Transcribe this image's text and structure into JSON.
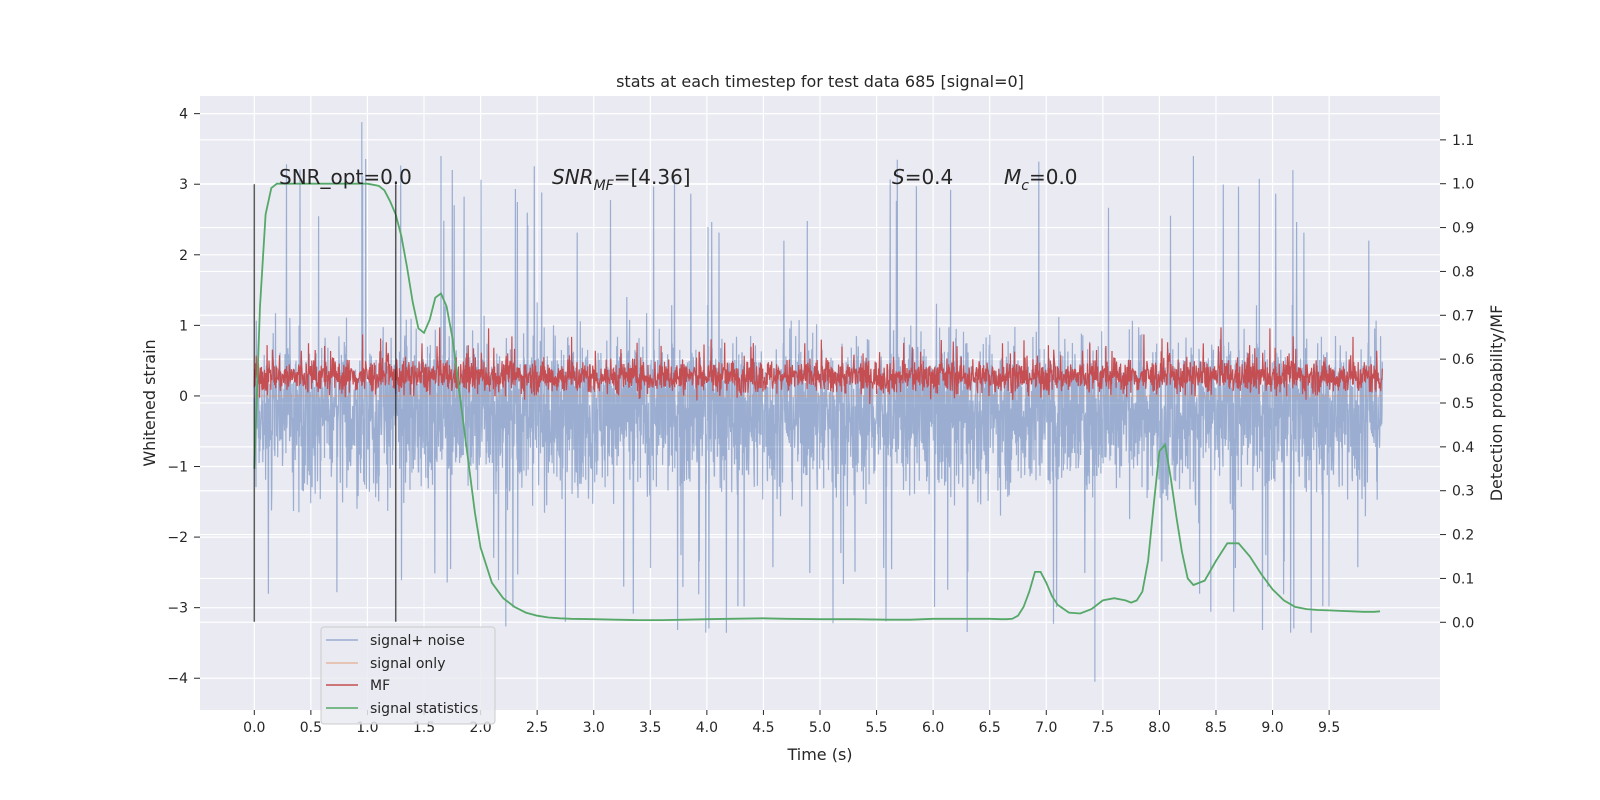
{
  "chart_data": {
    "type": "line",
    "title": "stats at each timestep for test data 685 [signal=0]",
    "xlabel": "Time (s)",
    "ylabel": "Whitened strain",
    "ylabel_right": "Detection probability/MF",
    "xlim": [
      -0.48,
      10.48
    ],
    "ylim": [
      -4.45,
      4.25
    ],
    "ylim_right": [
      -0.2,
      1.2
    ],
    "x_ticks": [
      "0.0",
      "0.5",
      "1.0",
      "1.5",
      "2.0",
      "2.5",
      "3.0",
      "3.5",
      "4.0",
      "4.5",
      "5.0",
      "5.5",
      "6.0",
      "6.5",
      "7.0",
      "7.5",
      "8.0",
      "8.5",
      "9.0",
      "9.5"
    ],
    "x_tick_values": [
      0,
      0.5,
      1,
      1.5,
      2,
      2.5,
      3,
      3.5,
      4,
      4.5,
      5,
      5.5,
      6,
      6.5,
      7,
      7.5,
      8,
      8.5,
      9,
      9.5
    ],
    "y_ticks": [
      "4",
      "3",
      "2",
      "1",
      "0",
      "−1",
      "−2",
      "−3",
      "−4"
    ],
    "y_tick_values": [
      4,
      3,
      2,
      1,
      0,
      -1,
      -2,
      -3,
      -4
    ],
    "y_ticks_right": [
      "1.1",
      "1.0",
      "0.9",
      "0.8",
      "0.7",
      "0.6",
      "0.5",
      "0.4",
      "0.3",
      "0.2",
      "0.1",
      "0.0"
    ],
    "y_tick_values_right": [
      1.1,
      1.0,
      0.9,
      0.8,
      0.7,
      0.6,
      0.5,
      0.4,
      0.3,
      0.2,
      0.1,
      0.0
    ],
    "grid": true,
    "legend_position": "lower-left",
    "legend": [
      "signal+ noise",
      "signal only",
      "MF",
      "signal statistics"
    ],
    "annotations": {
      "snr_opt": "SNR_opt=0.0",
      "snr_mf_name": "SNR",
      "snr_mf_sub": "MF",
      "snr_mf_value": "=[4.36]",
      "s_name": "S",
      "s_value": "=0.4",
      "mc_name": "M",
      "mc_sub": "c",
      "mc_value": "=0.0"
    },
    "vertical_lines": [
      {
        "x": 0.0,
        "ymin": -3.2,
        "ymax": 3.0
      },
      {
        "x": 1.25,
        "ymin": -3.2,
        "ymax": 3.0
      }
    ],
    "series": [
      {
        "name": "signal+ noise",
        "color": "#4c72b0",
        "x_range": [
          0,
          9.97
        ],
        "approx_envelope_upper": 1.4,
        "approx_envelope_lower": -1.9,
        "min": -4.05,
        "max": 3.88
      },
      {
        "name": "signal only",
        "color": "#dd8452",
        "x": [
          0,
          9.97
        ],
        "y": [
          0,
          0
        ]
      },
      {
        "name": "MF",
        "color": "#c44e52",
        "x_range": [
          0,
          9.97
        ],
        "axis": "right",
        "approx_mean": 0.56,
        "approx_min": 0.49,
        "approx_max": 0.68
      },
      {
        "name": "signal statistics",
        "color": "#55a868",
        "axis": "right",
        "x": [
          0,
          0.05,
          0.1,
          0.15,
          0.2,
          0.3,
          0.4,
          0.5,
          0.6,
          0.7,
          0.8,
          0.9,
          1.0,
          1.1,
          1.15,
          1.2,
          1.25,
          1.3,
          1.35,
          1.4,
          1.45,
          1.5,
          1.55,
          1.6,
          1.65,
          1.7,
          1.75,
          1.8,
          1.85,
          1.9,
          1.95,
          2.0,
          2.1,
          2.2,
          2.3,
          2.4,
          2.5,
          2.6,
          2.7,
          2.8,
          3.0,
          3.2,
          3.4,
          3.6,
          3.8,
          4.0,
          4.2,
          4.5,
          4.7,
          5.0,
          5.3,
          5.6,
          5.8,
          6.0,
          6.3,
          6.5,
          6.6,
          6.65,
          6.7,
          6.75,
          6.8,
          6.85,
          6.9,
          6.95,
          7.0,
          7.05,
          7.1,
          7.2,
          7.3,
          7.4,
          7.5,
          7.6,
          7.7,
          7.75,
          7.8,
          7.85,
          7.9,
          7.95,
          8.0,
          8.05,
          8.1,
          8.15,
          8.2,
          8.25,
          8.3,
          8.4,
          8.5,
          8.6,
          8.7,
          8.8,
          8.9,
          9.0,
          9.1,
          9.2,
          9.3,
          9.4,
          9.5,
          9.6,
          9.7,
          9.8,
          9.9,
          9.95
        ],
        "y": [
          0.35,
          0.72,
          0.93,
          0.99,
          1.0,
          1.0,
          1.0,
          1.0,
          1.0,
          1.0,
          1.0,
          1.0,
          1.0,
          0.995,
          0.985,
          0.96,
          0.93,
          0.88,
          0.81,
          0.73,
          0.67,
          0.66,
          0.69,
          0.74,
          0.75,
          0.72,
          0.65,
          0.55,
          0.45,
          0.35,
          0.25,
          0.17,
          0.09,
          0.055,
          0.035,
          0.022,
          0.015,
          0.011,
          0.009,
          0.008,
          0.007,
          0.006,
          0.005,
          0.005,
          0.006,
          0.007,
          0.008,
          0.009,
          0.008,
          0.007,
          0.007,
          0.006,
          0.006,
          0.008,
          0.008,
          0.008,
          0.007,
          0.007,
          0.008,
          0.015,
          0.035,
          0.07,
          0.115,
          0.115,
          0.09,
          0.06,
          0.04,
          0.022,
          0.02,
          0.03,
          0.05,
          0.055,
          0.05,
          0.045,
          0.05,
          0.07,
          0.14,
          0.27,
          0.39,
          0.405,
          0.33,
          0.24,
          0.16,
          0.1,
          0.085,
          0.095,
          0.14,
          0.18,
          0.18,
          0.15,
          0.11,
          0.075,
          0.05,
          0.035,
          0.03,
          0.028,
          0.027,
          0.026,
          0.025,
          0.024,
          0.024,
          0.025
        ]
      }
    ]
  }
}
